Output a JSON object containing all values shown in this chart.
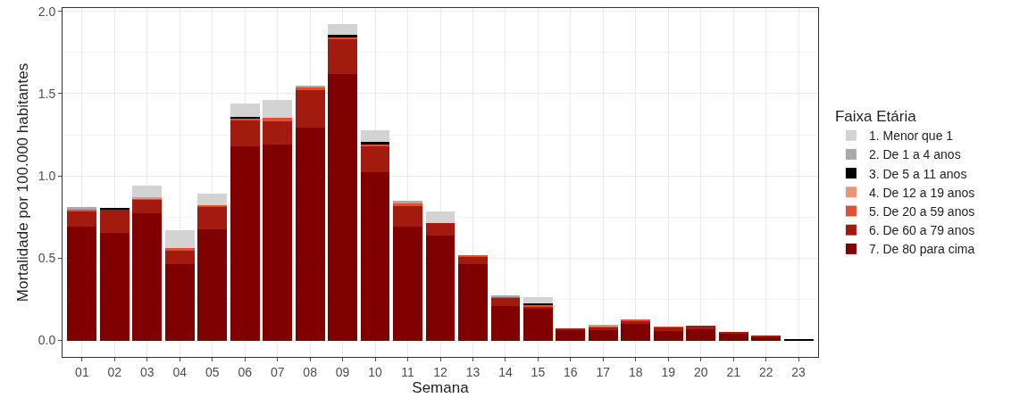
{
  "chart_data": {
    "type": "bar",
    "stacked": true,
    "xlabel": "Semana",
    "ylabel": "Mortalidade por 100.000 habitantes",
    "legend_title": "Faixa Etária",
    "legend": "right",
    "grid": true,
    "categories": [
      "01",
      "02",
      "03",
      "04",
      "05",
      "06",
      "07",
      "08",
      "09",
      "10",
      "11",
      "12",
      "13",
      "14",
      "15",
      "16",
      "17",
      "18",
      "19",
      "20",
      "21",
      "22",
      "23"
    ],
    "ylim": [
      -0.1,
      2.02
    ],
    "yticks": [
      {
        "value": 0,
        "label": "0.0"
      },
      {
        "value": 0.5,
        "label": "0.5"
      },
      {
        "value": 1,
        "label": "1.0"
      },
      {
        "value": 1.5,
        "label": "1.5"
      },
      {
        "value": 2,
        "label": "2.0"
      }
    ],
    "series": [
      {
        "name": "7. De 80 para cima",
        "color": "#800000",
        "values": [
          0.69,
          0.655,
          0.775,
          0.465,
          0.675,
          1.18,
          1.19,
          1.295,
          1.62,
          1.02,
          0.69,
          0.64,
          0.465,
          0.21,
          0.195,
          0.06,
          0.06,
          0.1,
          0.055,
          0.07,
          0.04,
          0.02,
          0
        ]
      },
      {
        "name": "6. De 60 a 79 anos",
        "color": "#a31b0e",
        "values": [
          0.095,
          0.14,
          0.08,
          0.085,
          0.14,
          0.155,
          0.14,
          0.225,
          0.21,
          0.16,
          0.125,
          0.075,
          0.045,
          0.05,
          0.012,
          0.015,
          0.02,
          0.02,
          0.025,
          0.02,
          0.012,
          0.009,
          0
        ]
      },
      {
        "name": "5. De 20 a 59 anos",
        "color": "#de5035",
        "values": [
          0.01,
          null,
          0.01,
          0.01,
          0.005,
          0.015,
          0.025,
          0.02,
          0.015,
          0.015,
          0.015,
          0,
          0.007,
          0.005,
          0.01,
          0,
          0.005,
          0.008,
          0.003,
          0,
          0,
          0,
          0
        ]
      },
      {
        "name": "4. De 12 a 19 anos",
        "color": "#ea957a",
        "values": [
          0,
          0,
          0.005,
          0,
          0,
          null,
          0,
          0,
          null,
          0,
          0,
          0,
          0,
          0,
          0,
          0,
          0,
          0,
          0,
          0,
          0,
          0,
          0
        ]
      },
      {
        "name": "3. De 5 a 11 anos",
        "color": "#000000",
        "values": [
          0,
          0.01,
          0,
          0,
          0,
          0.01,
          0,
          0,
          0.01,
          0.01,
          0,
          0,
          0,
          0,
          0.01,
          0,
          0,
          0,
          0,
          0,
          0,
          0,
          0.005
        ]
      },
      {
        "name": "2. De 1 a 4 anos",
        "color": "#a9a9a9",
        "values": [
          0.015,
          0,
          0,
          0,
          0,
          0,
          0,
          0.01,
          0,
          0,
          0.02,
          0,
          0,
          0.005,
          0,
          0,
          0.005,
          0,
          0,
          0,
          0,
          0,
          0
        ]
      },
      {
        "name": "1. Menor que 1",
        "color": "#d3d3d3",
        "values": [
          0,
          0,
          0.07,
          0.11,
          0.07,
          0.08,
          0.105,
          0,
          0.065,
          0.07,
          0,
          0.07,
          0,
          0,
          0.035,
          0,
          0,
          0,
          0,
          0,
          0,
          0,
          0
        ]
      }
    ]
  }
}
